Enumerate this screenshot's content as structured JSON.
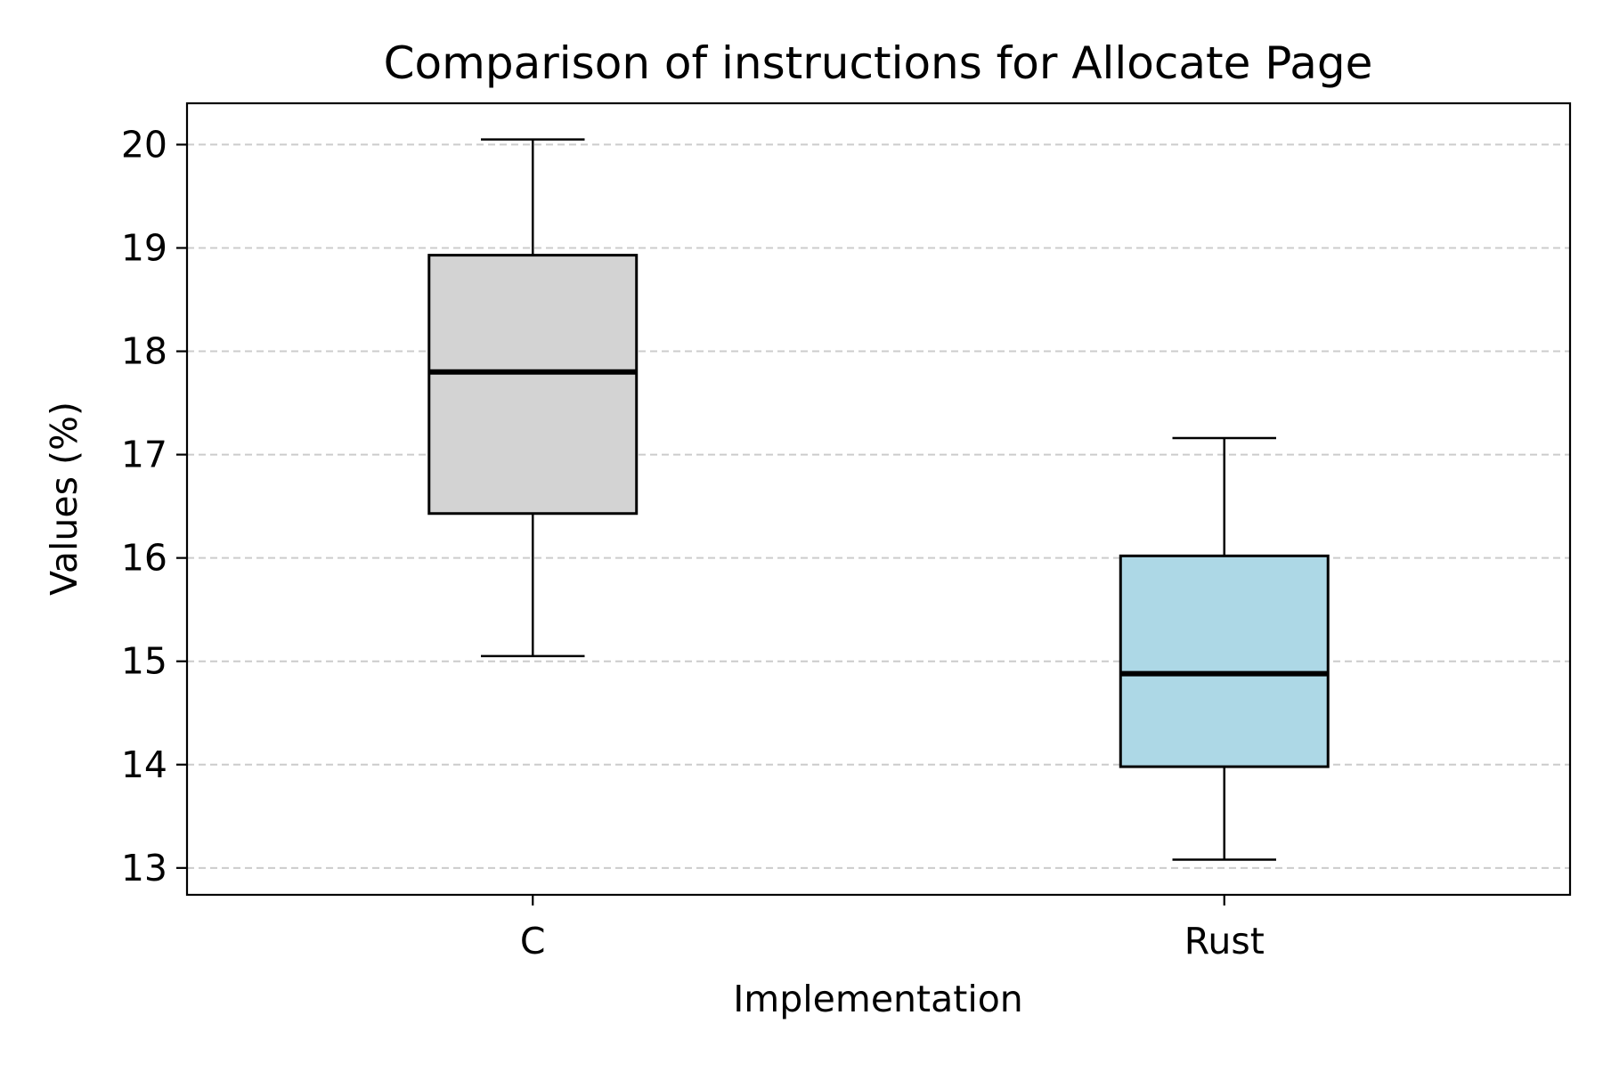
{
  "chart_data": {
    "type": "box",
    "title": "Comparison of instructions for Allocate Page",
    "xlabel": "Implementation",
    "ylabel": "Values (%)",
    "ylim": [
      12.74,
      20.4
    ],
    "yticks": [
      13,
      14,
      15,
      16,
      17,
      18,
      19,
      20
    ],
    "grid": {
      "axis": "y",
      "style": "dashed",
      "color": "#cccccc"
    },
    "categories": [
      "C",
      "Rust"
    ],
    "boxes": [
      {
        "label": "C",
        "whisker_low": 15.05,
        "q1": 16.43,
        "median": 17.8,
        "q3": 18.93,
        "whisker_high": 20.05,
        "fill": "#d3d3d3"
      },
      {
        "label": "Rust",
        "whisker_low": 13.08,
        "q1": 13.98,
        "median": 14.88,
        "q3": 16.02,
        "whisker_high": 17.16,
        "fill": "#add8e6"
      }
    ]
  }
}
